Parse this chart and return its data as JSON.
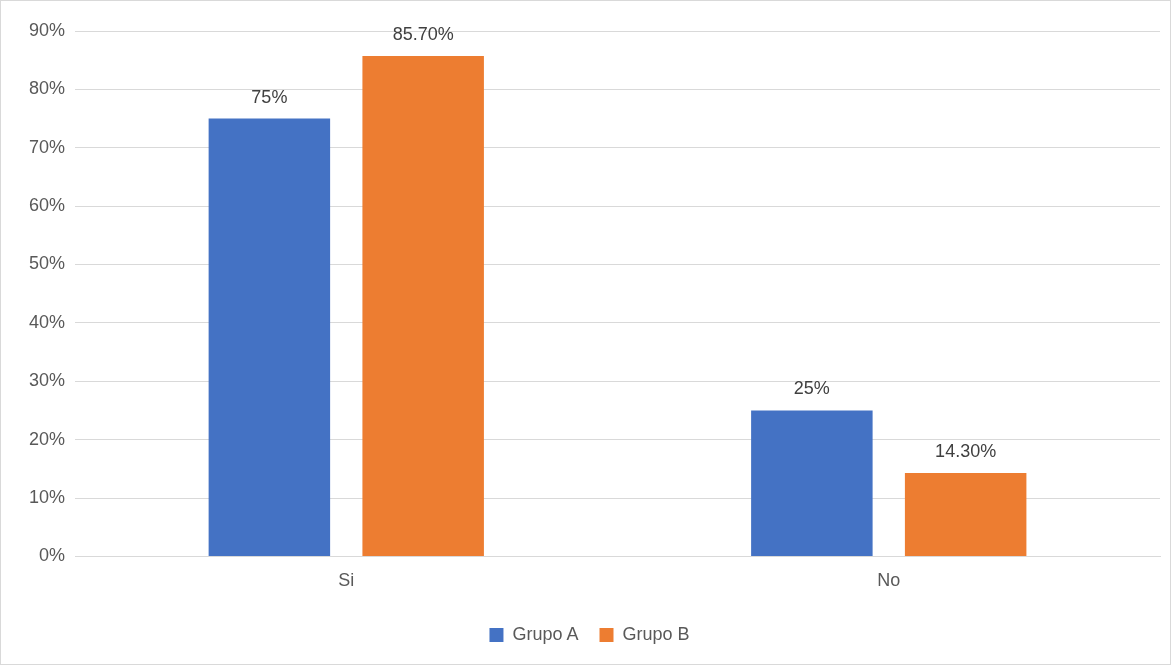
{
  "chart_data": {
    "type": "bar",
    "categories": [
      "Si",
      "No"
    ],
    "series": [
      {
        "name": "Grupo A",
        "color": "#4472c4",
        "values": [
          75,
          25
        ],
        "value_labels": [
          "75%",
          "25%"
        ]
      },
      {
        "name": "Grupo B",
        "color": "#ed7d31",
        "values": [
          85.7,
          14.3
        ],
        "value_labels": [
          "85.70%",
          "14.30%"
        ]
      }
    ],
    "ylim": [
      0,
      90
    ],
    "yticks": [
      {
        "value": 0,
        "label": "0%"
      },
      {
        "value": 10,
        "label": "10%"
      },
      {
        "value": 20,
        "label": "20%"
      },
      {
        "value": 30,
        "label": "30%"
      },
      {
        "value": 40,
        "label": "40%"
      },
      {
        "value": 50,
        "label": "50%"
      },
      {
        "value": 60,
        "label": "60%"
      },
      {
        "value": 70,
        "label": "70%"
      },
      {
        "value": 80,
        "label": "80%"
      },
      {
        "value": 90,
        "label": "90%"
      }
    ],
    "grid": "y",
    "legend": "bottom"
  }
}
